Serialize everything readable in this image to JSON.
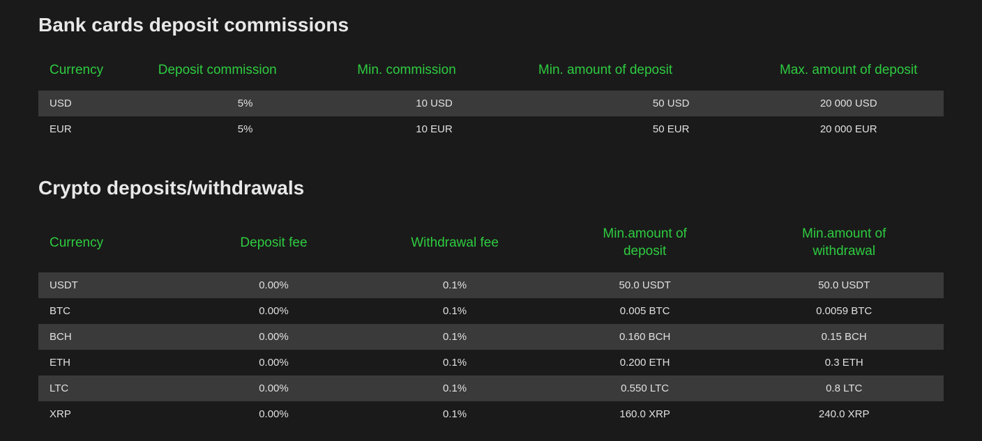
{
  "colors": {
    "background": "#1a1a1a",
    "text": "#e0e0e0",
    "header_text": "#2ecc40",
    "title_text": "#e8e8e8",
    "row_stripe": "#3a3a3a"
  },
  "typography": {
    "title_fontsize": 28,
    "header_fontsize": 19,
    "cell_fontsize": 15,
    "font_family": "Segoe UI"
  },
  "bank_section": {
    "title": "Bank cards deposit commissions",
    "columns": [
      "Currency",
      "Deposit commission",
      "Min. commission",
      "Min. amount of deposit",
      "Max. amount of deposit"
    ],
    "rows": [
      [
        "USD",
        "5%",
        "10 USD",
        "50 USD",
        "20 000 USD"
      ],
      [
        "EUR",
        "5%",
        "10 EUR",
        "50 EUR",
        "20 000 EUR"
      ]
    ]
  },
  "crypto_section": {
    "title": "Crypto deposits/withdrawals",
    "columns": [
      "Currency",
      "Deposit fee",
      "Withdrawal fee",
      "Min.amount of deposit",
      "Min.amount of withdrawal"
    ],
    "rows": [
      [
        "USDT",
        "0.00%",
        "0.1%",
        "50.0 USDT",
        "50.0 USDT"
      ],
      [
        "BTC",
        "0.00%",
        "0.1%",
        "0.005 BTC",
        "0.0059 BTC"
      ],
      [
        "BCH",
        "0.00%",
        "0.1%",
        "0.160 BCH",
        "0.15 BCH"
      ],
      [
        "ETH",
        "0.00%",
        "0.1%",
        "0.200 ETH",
        "0.3 ETH"
      ],
      [
        "LTC",
        "0.00%",
        "0.1%",
        "0.550 LTC",
        "0.8 LTC"
      ],
      [
        "XRP",
        "0.00%",
        "0.1%",
        "160.0 XRP",
        "240.0 XRP"
      ]
    ]
  }
}
